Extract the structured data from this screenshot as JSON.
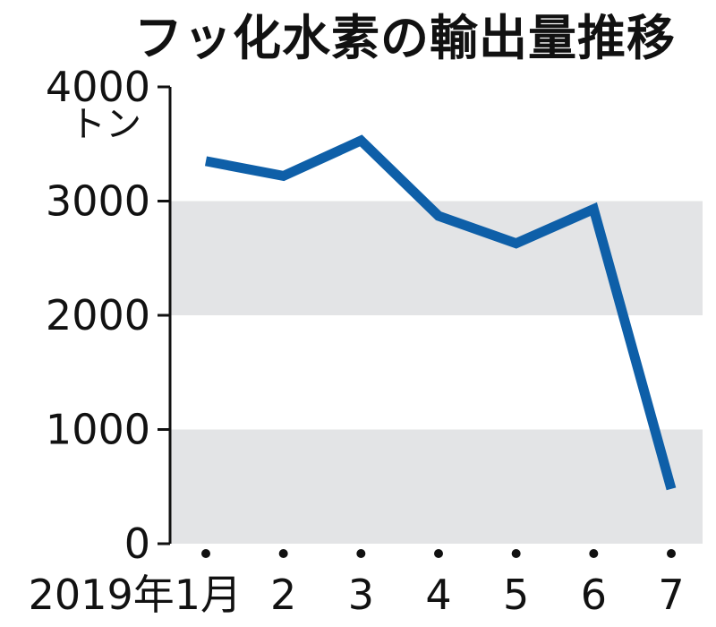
{
  "chart_data": {
    "type": "line",
    "title": "フッ化水素の輸出量推移",
    "y_unit": "トン",
    "x_tick_labels": [
      "2019年1月",
      "2",
      "3",
      "4",
      "5",
      "6",
      "7"
    ],
    "series": [
      {
        "values": [
          3350,
          3220,
          3530,
          2870,
          2630,
          2930,
          480
        ]
      }
    ],
    "ylim": [
      0,
      4000
    ],
    "y_ticks": [
      0,
      1000,
      2000,
      3000,
      4000
    ],
    "y_tick_labels": [
      "0",
      "1000",
      "2000",
      "3000",
      "4000"
    ],
    "grid": "alternating bands",
    "line_color": "#0e5fa8",
    "band_color": "#e3e4e6",
    "axis_color": "#111111"
  }
}
